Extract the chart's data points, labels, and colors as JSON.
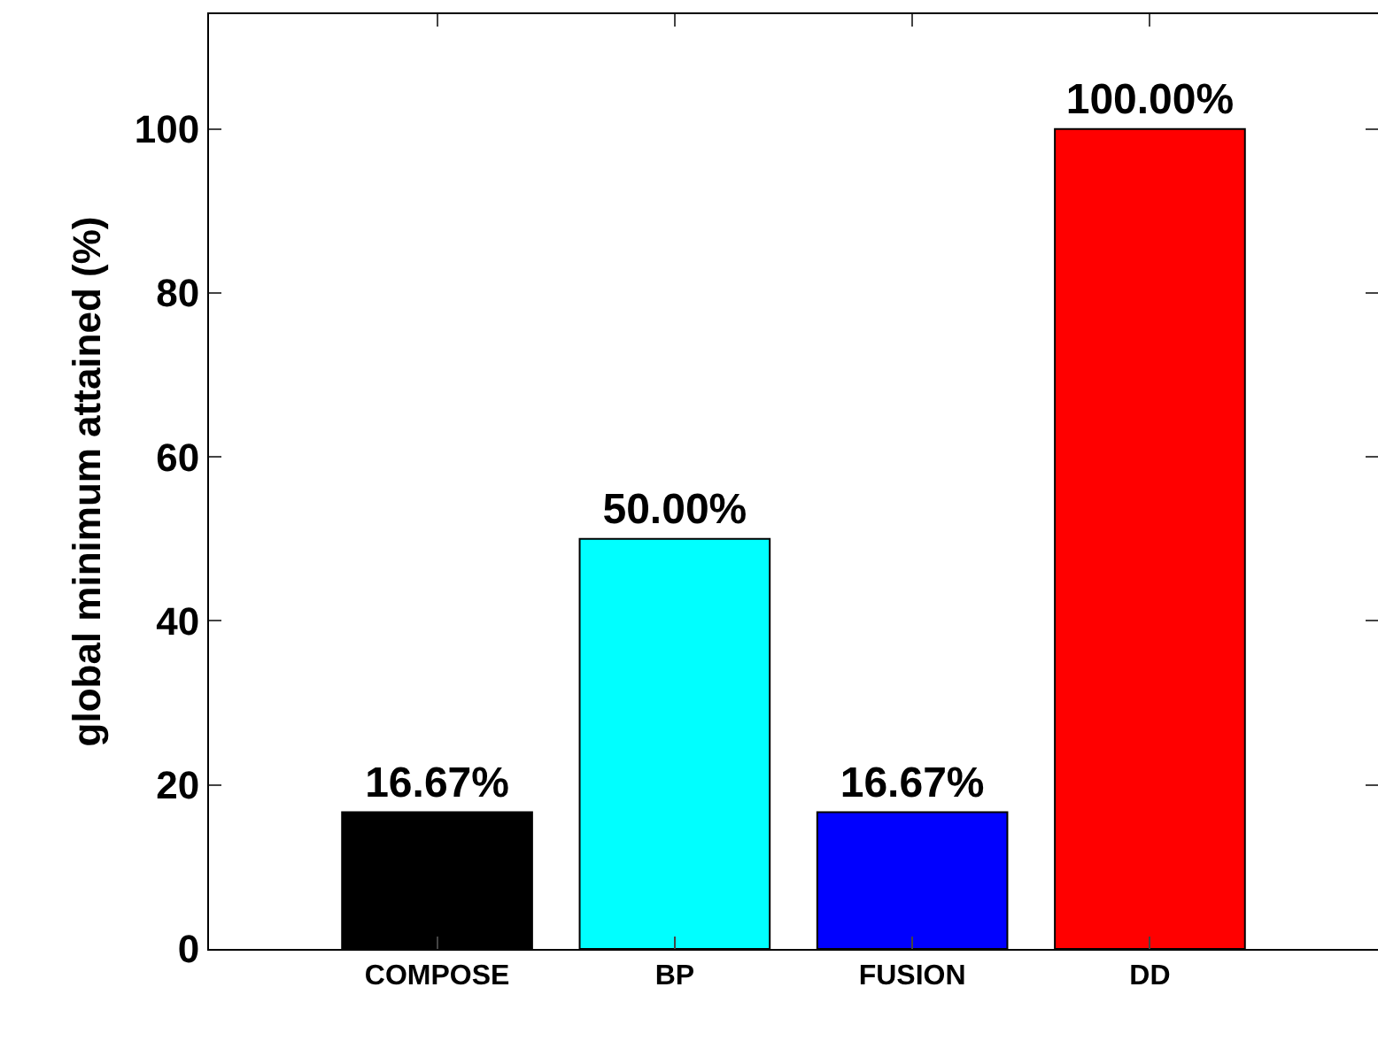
{
  "chart_data": {
    "type": "bar",
    "ylabel": "global minimum attained (%)",
    "categories": [
      "COMPOSE",
      "BP",
      "FUSION",
      "DD"
    ],
    "values": [
      16.67,
      50,
      16.67,
      100
    ],
    "colors": [
      "#000000",
      "#00ffff",
      "#0000ff",
      "#ff0000"
    ],
    "value_labels": [
      "16.67%",
      "50.00%",
      "16.67%",
      "100.00%"
    ],
    "ylim": [
      0,
      114
    ],
    "yticks": [
      0,
      20,
      40,
      60,
      80,
      100
    ],
    "grid": false
  }
}
